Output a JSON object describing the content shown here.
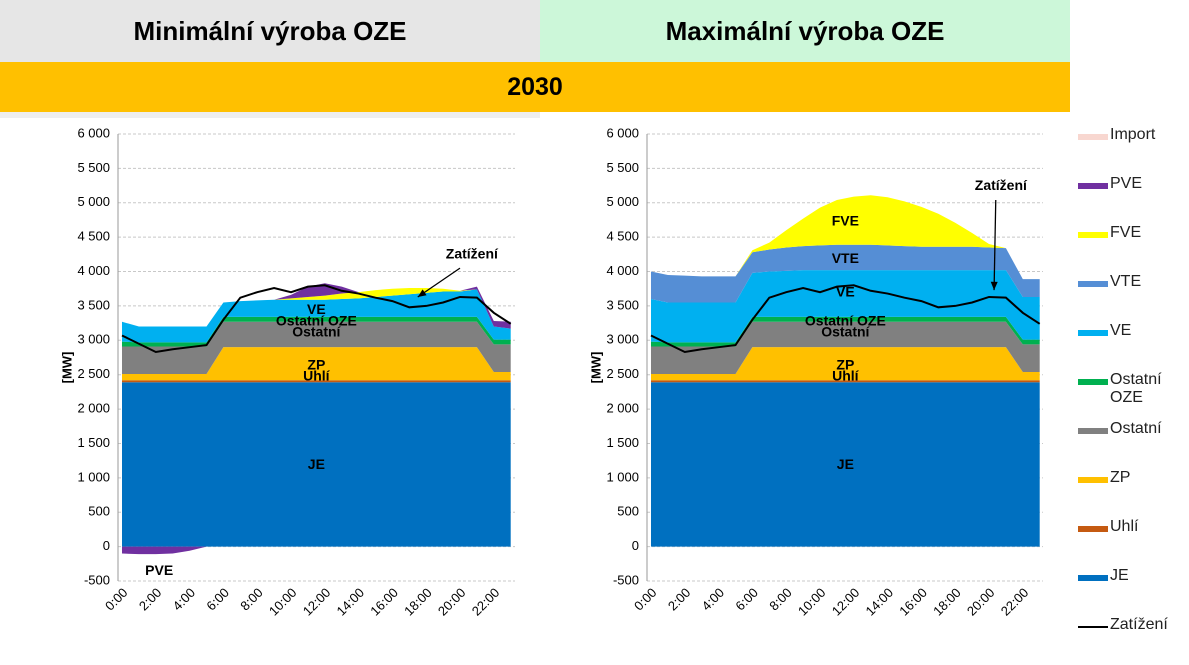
{
  "header": {
    "left": "Minimální výroba OZE",
    "right": "Maximální výroba OZE",
    "year": "2030"
  },
  "chart_data": [
    {
      "type": "stacked-area",
      "ylabel": "[MW]",
      "categories": [
        "0:00",
        null,
        "2:00",
        null,
        "4:00",
        null,
        "6:00",
        null,
        "8:00",
        null,
        "10:00",
        null,
        "12:00",
        null,
        "14:00",
        null,
        "16:00",
        null,
        "18:00",
        null,
        "20:00",
        null,
        "22:00",
        null
      ],
      "ylim": [
        -500,
        6000
      ],
      "yticks": [
        -500,
        0,
        500,
        {
          "value": 1000,
          "label": "1 000"
        },
        {
          "value": 1500,
          "label": "1 500"
        },
        {
          "value": 2000,
          "label": "2 000"
        },
        {
          "value": 2500,
          "label": "2 500"
        },
        {
          "value": 3000,
          "label": "3 000"
        },
        {
          "value": 3500,
          "label": "3 500"
        },
        {
          "value": 4000,
          "label": "4 000"
        },
        {
          "value": 4500,
          "label": "4 500"
        },
        {
          "value": 5000,
          "label": "5 000"
        },
        {
          "value": 5500,
          "label": "5 500"
        },
        {
          "value": 6000,
          "label": "6 000"
        }
      ],
      "grid": true,
      "series": [
        {
          "name": "JE",
          "color": "#0070c0",
          "values": [
            2390,
            2390,
            2390,
            2390,
            2390,
            2390,
            2390,
            2390,
            2390,
            2390,
            2390,
            2390,
            2390,
            2390,
            2390,
            2390,
            2390,
            2390,
            2390,
            2390,
            2390,
            2390,
            2390,
            2390
          ]
        },
        {
          "name": "Uhlí",
          "color": "#c55a11",
          "values": [
            30,
            30,
            30,
            30,
            30,
            30,
            30,
            30,
            30,
            30,
            30,
            30,
            30,
            30,
            30,
            30,
            30,
            30,
            30,
            30,
            30,
            30,
            30,
            30
          ]
        },
        {
          "name": "ZP",
          "color": "#ffc000",
          "values": [
            90,
            90,
            90,
            90,
            90,
            90,
            480,
            480,
            480,
            480,
            480,
            480,
            480,
            480,
            480,
            480,
            480,
            480,
            480,
            480,
            480,
            480,
            120,
            120
          ]
        },
        {
          "name": "Ostatní",
          "color": "#808080",
          "values": [
            400,
            400,
            400,
            400,
            400,
            400,
            370,
            370,
            370,
            370,
            370,
            370,
            370,
            370,
            370,
            370,
            370,
            370,
            370,
            370,
            370,
            370,
            400,
            400
          ]
        },
        {
          "name": "Ostatní OZE",
          "color": "#00b050",
          "values": [
            70,
            60,
            60,
            60,
            60,
            60,
            70,
            70,
            70,
            70,
            70,
            70,
            70,
            70,
            70,
            70,
            70,
            70,
            70,
            70,
            70,
            70,
            70,
            70
          ]
        },
        {
          "name": "VE",
          "color": "#00b0f0",
          "values": [
            290,
            230,
            230,
            230,
            230,
            230,
            210,
            230,
            240,
            250,
            250,
            250,
            250,
            260,
            270,
            290,
            310,
            330,
            350,
            370,
            370,
            400,
            190,
            160
          ]
        },
        {
          "name": "VTE",
          "color": "#558ed5",
          "values": [
            0,
            0,
            0,
            0,
            0,
            0,
            0,
            0,
            0,
            0,
            0,
            0,
            0,
            0,
            0,
            0,
            0,
            0,
            0,
            0,
            0,
            0,
            0,
            0
          ]
        },
        {
          "name": "FVE",
          "color": "#ffff00",
          "values": [
            0,
            0,
            0,
            0,
            0,
            0,
            0,
            0,
            0,
            0,
            20,
            40,
            60,
            80,
            90,
            100,
            100,
            90,
            70,
            40,
            10,
            0,
            0,
            0
          ]
        },
        {
          "name": "PVE",
          "color": "#7030a0",
          "values": [
            -100,
            -110,
            -110,
            -100,
            -60,
            0,
            0,
            0,
            0,
            0,
            50,
            150,
            180,
            100,
            0,
            0,
            0,
            0,
            0,
            0,
            0,
            40,
            80,
            100
          ]
        },
        {
          "name": "Import",
          "color": "#f8d7d0",
          "values": [
            0,
            0,
            0,
            0,
            0,
            0,
            0,
            0,
            0,
            0,
            0,
            0,
            0,
            0,
            0,
            0,
            0,
            0,
            0,
            0,
            0,
            0,
            0,
            0
          ]
        }
      ],
      "line": {
        "name": "Zatížení",
        "color": "#000000",
        "values": [
          3070,
          2950,
          2830,
          2870,
          2900,
          2930,
          3300,
          3620,
          3700,
          3760,
          3700,
          3780,
          3800,
          3720,
          3680,
          3620,
          3570,
          3480,
          3500,
          3550,
          3630,
          3620,
          3400,
          3240
        ]
      },
      "annotations": [
        "VE",
        "Ostatní OZE",
        "Ostatní",
        "ZP",
        "Uhlí",
        "JE",
        "PVE",
        "Zatížení"
      ]
    },
    {
      "type": "stacked-area",
      "ylabel": "[MW]",
      "categories": [
        "0:00",
        null,
        "2:00",
        null,
        "4:00",
        null,
        "6:00",
        null,
        "8:00",
        null,
        "10:00",
        null,
        "12:00",
        null,
        "14:00",
        null,
        "16:00",
        null,
        "18:00",
        null,
        "20:00",
        null,
        "22:00",
        null
      ],
      "ylim": [
        -500,
        6000
      ],
      "yticks": [
        -500,
        0,
        500,
        {
          "value": 1000,
          "label": "1 000"
        },
        {
          "value": 1500,
          "label": "1 500"
        },
        {
          "value": 2000,
          "label": "2 000"
        },
        {
          "value": 2500,
          "label": "2 500"
        },
        {
          "value": 3000,
          "label": "3 000"
        },
        {
          "value": 3500,
          "label": "3 500"
        },
        {
          "value": 4000,
          "label": "4 000"
        },
        {
          "value": 4500,
          "label": "4 500"
        },
        {
          "value": 5000,
          "label": "5 000"
        },
        {
          "value": 5500,
          "label": "5 500"
        },
        {
          "value": 6000,
          "label": "6 000"
        }
      ],
      "grid": true,
      "series": [
        {
          "name": "JE",
          "color": "#0070c0",
          "values": [
            2390,
            2390,
            2390,
            2390,
            2390,
            2390,
            2390,
            2390,
            2390,
            2390,
            2390,
            2390,
            2390,
            2390,
            2390,
            2390,
            2390,
            2390,
            2390,
            2390,
            2390,
            2390,
            2390,
            2390
          ]
        },
        {
          "name": "Uhlí",
          "color": "#c55a11",
          "values": [
            30,
            30,
            30,
            30,
            30,
            30,
            30,
            30,
            30,
            30,
            30,
            30,
            30,
            30,
            30,
            30,
            30,
            30,
            30,
            30,
            30,
            30,
            30,
            30
          ]
        },
        {
          "name": "ZP",
          "color": "#ffc000",
          "values": [
            90,
            90,
            90,
            90,
            90,
            90,
            480,
            480,
            480,
            480,
            480,
            480,
            480,
            480,
            480,
            480,
            480,
            480,
            480,
            480,
            480,
            480,
            120,
            120
          ]
        },
        {
          "name": "Ostatní",
          "color": "#808080",
          "values": [
            400,
            400,
            400,
            400,
            400,
            400,
            370,
            370,
            370,
            370,
            370,
            370,
            370,
            370,
            370,
            370,
            370,
            370,
            370,
            370,
            370,
            370,
            400,
            400
          ]
        },
        {
          "name": "Ostatní OZE",
          "color": "#00b050",
          "values": [
            70,
            60,
            60,
            60,
            60,
            60,
            70,
            70,
            70,
            70,
            70,
            70,
            70,
            70,
            70,
            70,
            70,
            70,
            70,
            70,
            70,
            70,
            70,
            70
          ]
        },
        {
          "name": "VE",
          "color": "#00b0f0",
          "values": [
            620,
            580,
            580,
            580,
            580,
            580,
            640,
            660,
            670,
            680,
            680,
            680,
            680,
            680,
            680,
            680,
            680,
            680,
            680,
            680,
            680,
            680,
            620,
            620
          ]
        },
        {
          "name": "VTE",
          "color": "#558ed5",
          "values": [
            400,
            400,
            390,
            380,
            380,
            380,
            300,
            320,
            340,
            350,
            360,
            370,
            370,
            370,
            360,
            350,
            340,
            340,
            340,
            340,
            330,
            320,
            260,
            260
          ]
        },
        {
          "name": "FVE",
          "color": "#ffff00",
          "values": [
            0,
            0,
            0,
            0,
            0,
            0,
            30,
            100,
            250,
            400,
            550,
            650,
            700,
            720,
            700,
            650,
            580,
            480,
            350,
            200,
            50,
            0,
            0,
            0
          ]
        },
        {
          "name": "PVE",
          "color": "#7030a0",
          "values": [
            0,
            0,
            0,
            0,
            0,
            0,
            0,
            0,
            0,
            0,
            0,
            0,
            0,
            0,
            0,
            0,
            0,
            0,
            0,
            0,
            0,
            0,
            0,
            0
          ]
        },
        {
          "name": "Import",
          "color": "#f8d7d0",
          "values": [
            0,
            0,
            0,
            0,
            0,
            0,
            0,
            0,
            0,
            0,
            0,
            0,
            0,
            0,
            0,
            0,
            0,
            0,
            0,
            0,
            0,
            0,
            0,
            0
          ]
        }
      ],
      "line": {
        "name": "Zatížení",
        "color": "#000000",
        "values": [
          3070,
          2950,
          2830,
          2870,
          2900,
          2930,
          3300,
          3620,
          3700,
          3760,
          3700,
          3780,
          3800,
          3720,
          3680,
          3620,
          3570,
          3480,
          3500,
          3550,
          3630,
          3620,
          3400,
          3240
        ]
      },
      "annotations": [
        "FVE",
        "VTE",
        "VE",
        "Ostatní OZE",
        "Ostatní",
        "ZP",
        "Uhlí",
        "JE",
        "Zatížení"
      ]
    }
  ]
}
